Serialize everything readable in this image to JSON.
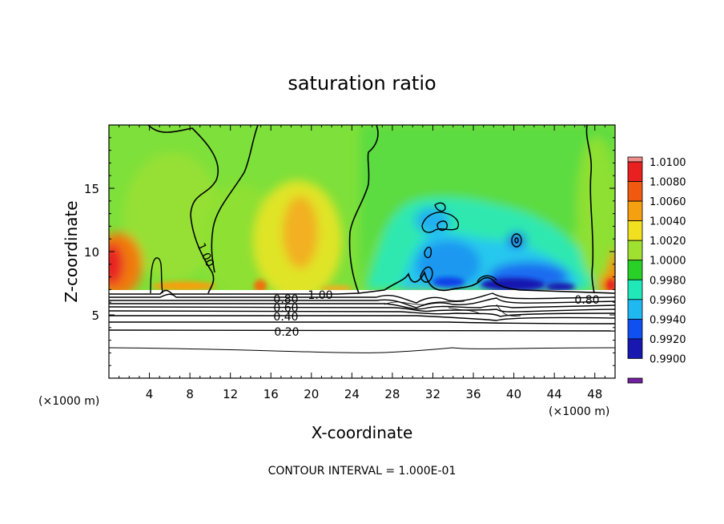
{
  "chart_data": {
    "type": "heatmap",
    "title": "saturation ratio",
    "xlabel": "X-coordinate",
    "ylabel": "Z-coordinate",
    "x_unit": "(×1000 m)",
    "x_ticks": [
      4,
      8,
      12,
      16,
      20,
      24,
      28,
      32,
      36,
      40,
      44,
      48
    ],
    "y_ticks": [
      5,
      10,
      15
    ],
    "xlim": [
      0,
      50
    ],
    "ylim": [
      0,
      20
    ],
    "colorbar": {
      "levels": [
        "1.0100",
        "1.0080",
        "1.0060",
        "1.0040",
        "1.0020",
        "1.0000",
        "0.9980",
        "0.9960",
        "0.9940",
        "0.9920",
        "0.9900"
      ],
      "colors": [
        "#f08c8c",
        "#e82020",
        "#f05a10",
        "#f5a010",
        "#f0e020",
        "#a0e030",
        "#28d028",
        "#20e8b8",
        "#20b8f0",
        "#1050f0",
        "#1818b0",
        "#7020a0"
      ]
    },
    "contour_labels": [
      "1.00",
      "1.00",
      "0.80",
      "0.60",
      "0.40",
      "0.20",
      "0.80"
    ],
    "contour_interval": "CONTOUR INTERVAL = 1.000E-01",
    "grid": false,
    "legend": "right"
  }
}
